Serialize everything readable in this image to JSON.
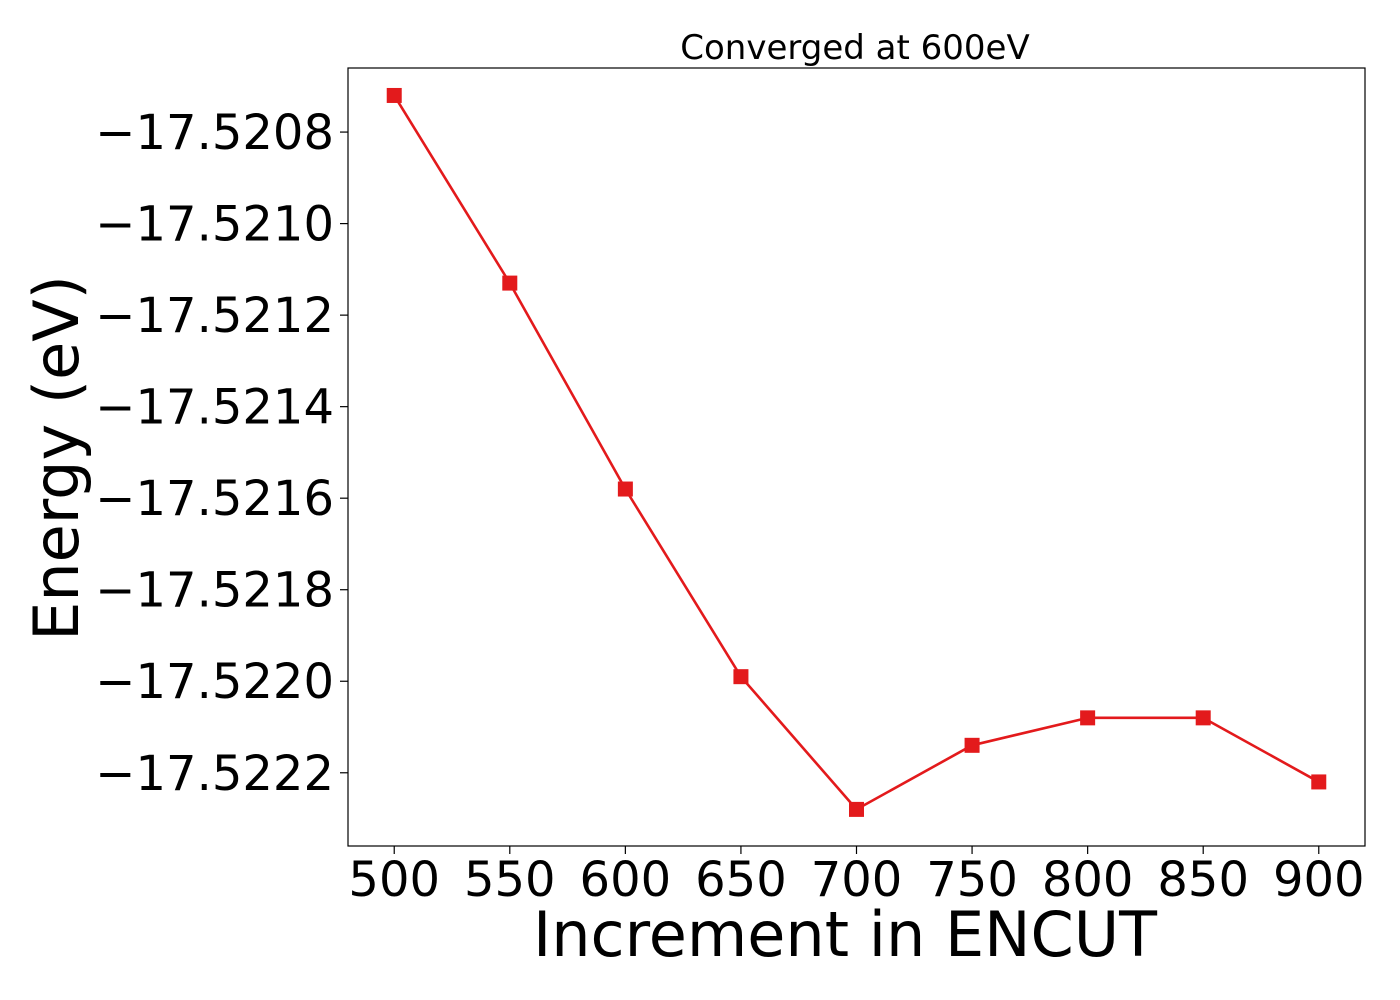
{
  "chart_data": {
    "type": "line",
    "title": "Converged at 600eV",
    "xlabel": "Increment in ENCUT",
    "ylabel": "Energy (eV)",
    "x": [
      500,
      550,
      600,
      650,
      700,
      750,
      800,
      850,
      900
    ],
    "xticks": [
      500,
      550,
      600,
      650,
      700,
      750,
      800,
      850,
      900
    ],
    "xtick_labels": [
      "500",
      "550",
      "600",
      "650",
      "700",
      "750",
      "800",
      "850",
      "900"
    ],
    "yticks": [
      -17.5208,
      -17.521,
      -17.5212,
      -17.5214,
      -17.5216,
      -17.5218,
      -17.522,
      -17.5222
    ],
    "ytick_labels": [
      "−17.5208",
      "−17.5210",
      "−17.5212",
      "−17.5214",
      "−17.5216",
      "−17.5218",
      "−17.5220",
      "−17.5222"
    ],
    "xlim": [
      480,
      920
    ],
    "ylim": [
      -17.52236,
      -17.52066
    ],
    "grid": false,
    "series": [
      {
        "color": "#e31a1c",
        "marker": "square",
        "values": [
          -17.52072,
          -17.52113,
          -17.52158,
          -17.52199,
          -17.52228,
          -17.52214,
          -17.52208,
          -17.52208,
          -17.52222
        ]
      }
    ]
  }
}
